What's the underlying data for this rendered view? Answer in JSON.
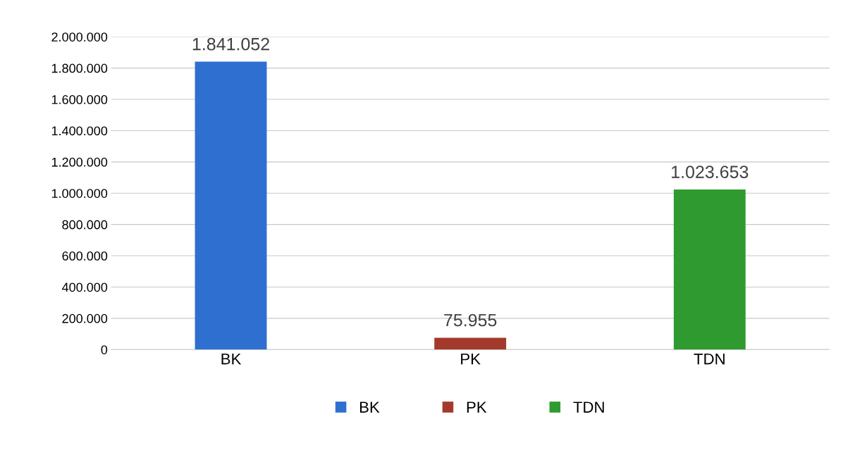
{
  "chart_data": {
    "type": "bar",
    "categories": [
      "BK",
      "PK",
      "TDN"
    ],
    "series": [
      {
        "name": "BK",
        "color": "#2f6fd0",
        "values": [
          1841052,
          null,
          null
        ],
        "value_labels": [
          "1.841.052",
          null,
          null
        ]
      },
      {
        "name": "PK",
        "color": "#a33a2c",
        "values": [
          null,
          75955,
          null
        ],
        "value_labels": [
          null,
          "75.955",
          null
        ]
      },
      {
        "name": "TDN",
        "color": "#2f9a30",
        "values": [
          null,
          null,
          1023653
        ],
        "value_labels": [
          null,
          null,
          "1.023.653"
        ]
      }
    ],
    "ylim": [
      0,
      2000000
    ],
    "yticks": [
      0,
      {
        "value": 200000,
        "label": "200.000"
      },
      {
        "value": 400000,
        "label": "400.000"
      },
      {
        "value": 600000,
        "label": "600.000"
      },
      {
        "value": 800000,
        "label": "800.000"
      },
      {
        "value": 1000000,
        "label": "1.000.000"
      },
      {
        "value": 1200000,
        "label": "1.200.000"
      },
      {
        "value": 1400000,
        "label": "1.400.000"
      },
      {
        "value": 1600000,
        "label": "1.600.000"
      },
      {
        "value": 1800000,
        "label": "1.800.000"
      },
      {
        "value": 2000000,
        "label": "2.000.000"
      }
    ],
    "grid": "y",
    "legend": "bottom"
  }
}
